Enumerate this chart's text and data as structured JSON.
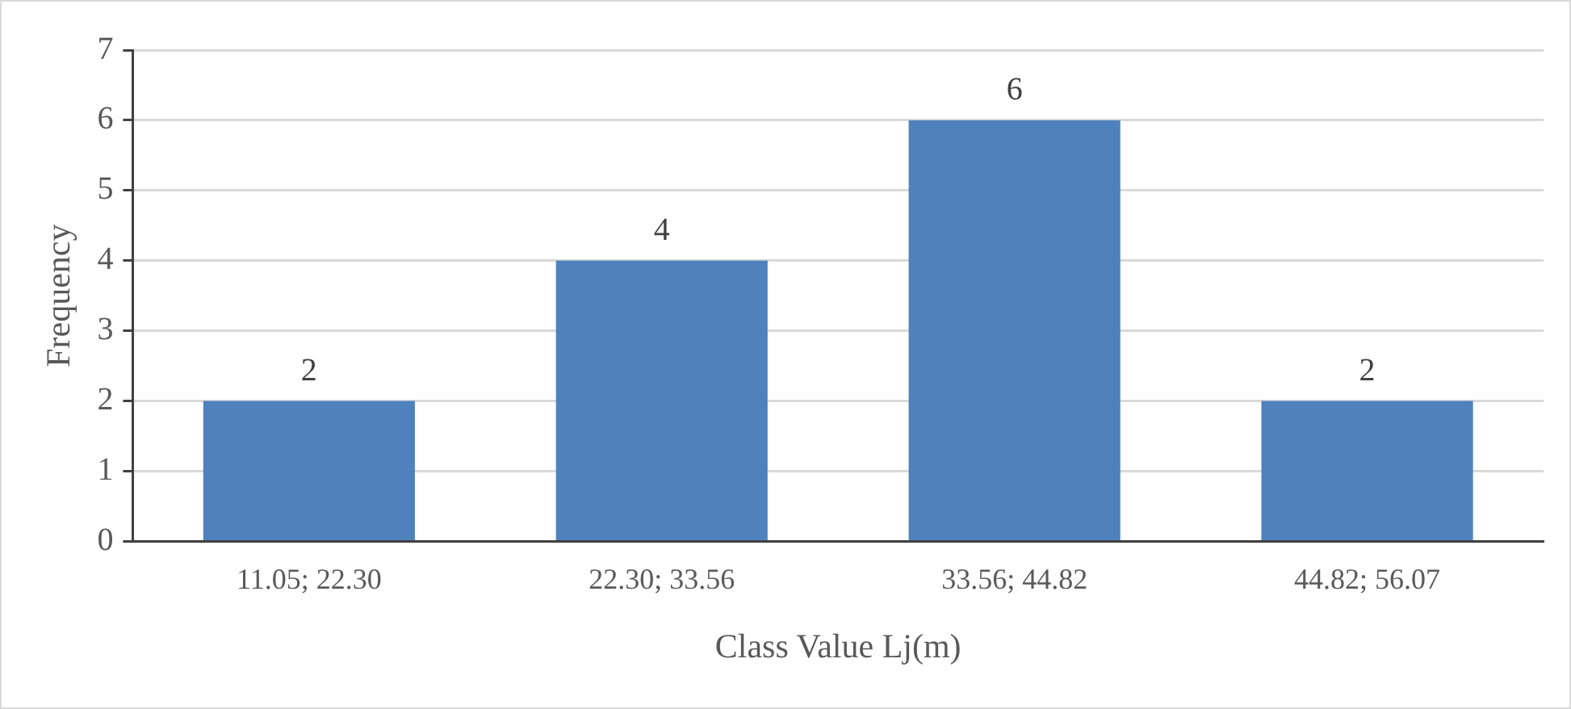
{
  "chart_data": {
    "type": "bar",
    "xlabel": "Class Value Lj(m)",
    "ylabel": "Frequency",
    "categories": [
      "11.05; 22.30",
      "22.30; 33.56",
      "33.56; 44.82",
      "44.82; 56.07"
    ],
    "values": [
      2,
      4,
      6,
      2
    ],
    "color": "#4f81bd",
    "ylim": [
      0,
      7
    ],
    "yticks": [
      0,
      1,
      2,
      3,
      4,
      5,
      6,
      7
    ],
    "grid": "y",
    "data_labels": true,
    "legend": false
  }
}
